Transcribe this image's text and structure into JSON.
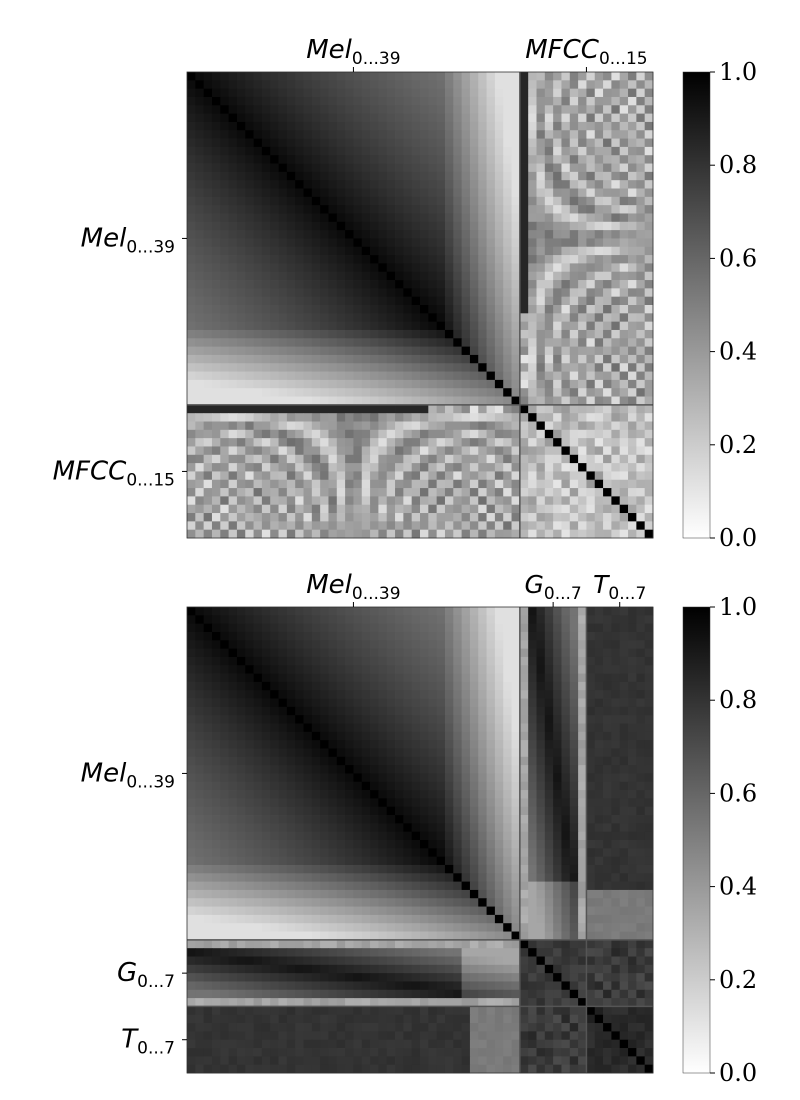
{
  "chart_data": [
    {
      "type": "heatmap",
      "title": "",
      "xlabel": "",
      "ylabel": "",
      "value_range": [
        0,
        1
      ],
      "colormap": "gray_r",
      "groups": [
        {
          "name": "Mel",
          "sub": "0...39",
          "size": 40
        },
        {
          "name": "MFCC",
          "sub": "0...15",
          "size": 16
        }
      ],
      "colorbar_ticks": [
        "0.0",
        "0.2",
        "0.4",
        "0.6",
        "0.8",
        "1.0"
      ]
    },
    {
      "type": "heatmap",
      "title": "",
      "xlabel": "",
      "ylabel": "",
      "value_range": [
        0,
        1
      ],
      "colormap": "gray_r",
      "groups": [
        {
          "name": "Mel",
          "sub": "0...39",
          "size": 40
        },
        {
          "name": "G",
          "sub": "0...7",
          "size": 8
        },
        {
          "name": "T",
          "sub": "0...7",
          "size": 8
        }
      ],
      "colorbar_ticks": [
        "0.0",
        "0.2",
        "0.4",
        "0.6",
        "0.8",
        "1.0"
      ]
    }
  ]
}
